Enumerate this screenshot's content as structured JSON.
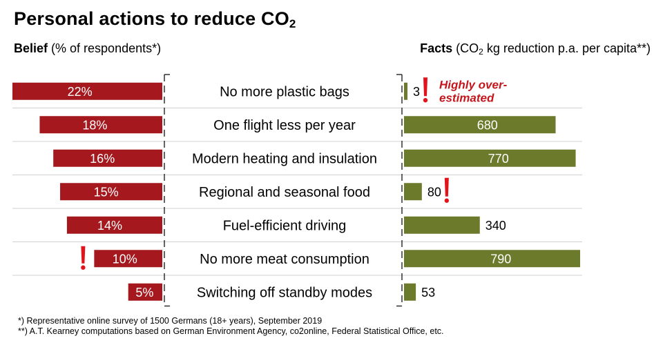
{
  "title": "Personal actions to reduce CO",
  "title_sub": "2",
  "left_header": {
    "bold": "Belief",
    "rest": " (% of respondents*)"
  },
  "right_header": {
    "bold": "Facts",
    "pre": " (CO",
    "sub": "2",
    "post": " kg reduction p.a. per capita**)"
  },
  "annotation": {
    "line1": "Highly over-",
    "line2": "estimated"
  },
  "footnotes": [
    "*) Representative  online survey of 1500 Germans  (18+ years), September 2019",
    "**) A.T.  Kearney computations  based on German Environment  Agency, co2online,  Federal Statistical Office, etc."
  ],
  "colors": {
    "belief": "#a4181e",
    "facts": "#6b7a2b",
    "exclaim": "#e3131b",
    "annotation": "#c4161c"
  },
  "chart_data": {
    "type": "bar",
    "categories": [
      "No more plastic bags",
      "One flight less per year",
      "Modern heating and insulation",
      "Regional and seasonal food",
      "Fuel-efficient driving",
      "No more meat consumption",
      "Switching off standby modes"
    ],
    "series": [
      {
        "name": "Belief",
        "values": [
          22,
          18,
          16,
          15,
          14,
          10,
          5
        ],
        "labels": [
          "22%",
          "18%",
          "16%",
          "15%",
          "14%",
          "10%",
          "5%"
        ],
        "xlim": [
          0,
          22
        ]
      },
      {
        "name": "Facts",
        "values": [
          3,
          680,
          770,
          80,
          340,
          790,
          53
        ],
        "labels": [
          "3",
          "680",
          "770",
          "80",
          "340",
          "790",
          "53"
        ],
        "xlim": [
          0,
          790
        ]
      }
    ],
    "highlights": {
      "Belief": [
        5
      ],
      "Facts": [
        0,
        3
      ]
    }
  }
}
